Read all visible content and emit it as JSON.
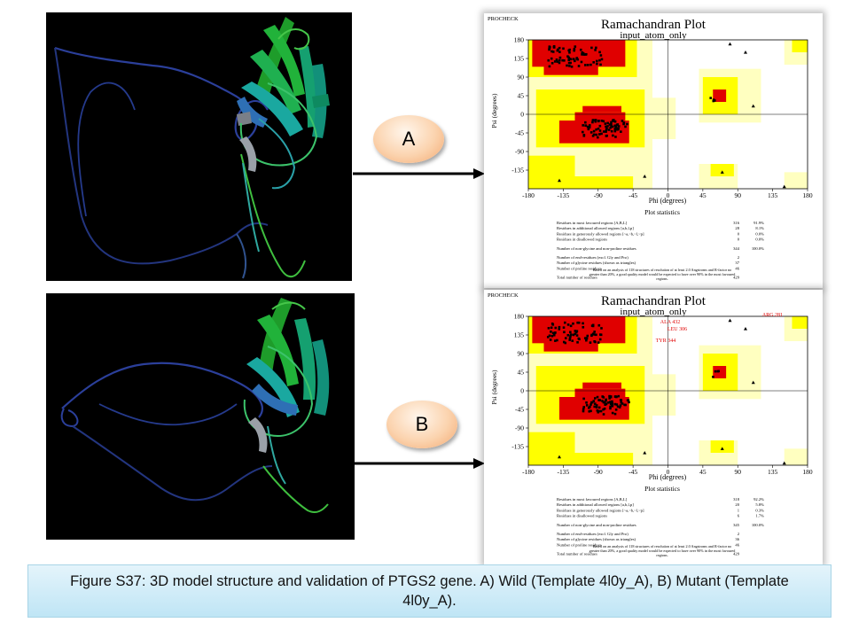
{
  "panels": [
    {
      "id": "A",
      "label": "A",
      "plot": {
        "program": "PROCHECK",
        "title": "Ramachandran Plot",
        "subtitle": "input_atom_only",
        "xlabel": "Phi (degrees)",
        "ylabel": "Psi (degrees)",
        "x_ticks": [
          "-180",
          "-135",
          "-90",
          "-45",
          "0",
          "45",
          "90",
          "135",
          "180"
        ],
        "y_ticks": [
          "180",
          "135",
          "90",
          "45",
          "0",
          "-45",
          "-90",
          "-135"
        ],
        "stats_title": "Plot statistics",
        "stats": [
          {
            "label": "Residues in most favoured regions  [A,B,L]",
            "count": "316",
            "percent": "91.9%"
          },
          {
            "label": "Residues in additional allowed regions  [a,b,l,p]",
            "count": "28",
            "percent": "8.1%"
          },
          {
            "label": "Residues in generously allowed regions  [~a,~b,~l,~p]",
            "count": "0",
            "percent": "0.0%"
          },
          {
            "label": "Residues in disallowed regions",
            "count": "0",
            "percent": "0.0%"
          },
          {
            "label": "Number of non-glycine and non-proline residues",
            "count": "344",
            "percent": "100.0%"
          },
          {
            "label": "Number of end-residues (excl. Gly and Pro)",
            "count": "2",
            "percent": ""
          },
          {
            "label": "Number of glycine residues (shown as triangles)",
            "count": "37",
            "percent": ""
          },
          {
            "label": "Number of proline residues",
            "count": "46",
            "percent": ""
          },
          {
            "label": "Total number of residues",
            "count": "429",
            "percent": ""
          }
        ],
        "note": "Based on an analysis of 118 structures of resolution of at least 2.0 Angstroms and R-factor no greater than 20%, a good quality model would be expected to have over 90% in the most favoured regions.",
        "labelled_residues": []
      }
    },
    {
      "id": "B",
      "label": "B",
      "plot": {
        "program": "PROCHECK",
        "title": "Ramachandran Plot",
        "subtitle": "input_atom_only",
        "xlabel": "Phi (degrees)",
        "ylabel": "Psi (degrees)",
        "x_ticks": [
          "-180",
          "-135",
          "-90",
          "-45",
          "0",
          "45",
          "90",
          "135",
          "180"
        ],
        "y_ticks": [
          "180",
          "135",
          "90",
          "45",
          "0",
          "-45",
          "-90",
          "-135"
        ],
        "stats_title": "Plot statistics",
        "stats": [
          {
            "label": "Residues in most favoured regions  [A,B,L]",
            "count": "318",
            "percent": "92.2%"
          },
          {
            "label": "Residues in additional allowed regions  [a,b,l,p]",
            "count": "20",
            "percent": "5.8%"
          },
          {
            "label": "Residues in generously allowed regions  [~a,~b,~l,~p]",
            "count": "1",
            "percent": "0.3%"
          },
          {
            "label": "Residues in disallowed regions",
            "count": "6",
            "percent": "1.7%"
          },
          {
            "label": "Number of non-glycine and non-proline residues",
            "count": "345",
            "percent": "100.0%"
          },
          {
            "label": "Number of end-residues (excl. Gly and Pro)",
            "count": "2",
            "percent": ""
          },
          {
            "label": "Number of glycine residues (shown as triangles)",
            "count": "36",
            "percent": ""
          },
          {
            "label": "Number of proline residues",
            "count": "46",
            "percent": ""
          },
          {
            "label": "Total number of residues",
            "count": "429",
            "percent": ""
          }
        ],
        "note": "Based on an analysis of 118 structures of resolution of at least 2.0 Angstroms and R-factor no greater than 20%, a good quality model would be expected to have over 90% in the most favoured regions.",
        "labelled_residues": [
          "ARG 281",
          "ALA 432",
          "LEU 306",
          "TYR 344"
        ]
      }
    }
  ],
  "caption": "Figure S37: 3D model structure and validation of PTGS2 gene. A) Wild (Template 4l0y_A), B) Mutant (Template 4l0y_A).",
  "colors": {
    "most_favoured": "#e00000",
    "additional_allowed": "#ffff00",
    "generously_allowed": "#ffffc0",
    "disallowed": "#ffffff",
    "molecule_background": "#000000",
    "oval_fill": "#fbd3ae",
    "caption_fill": "#d6eef8"
  }
}
